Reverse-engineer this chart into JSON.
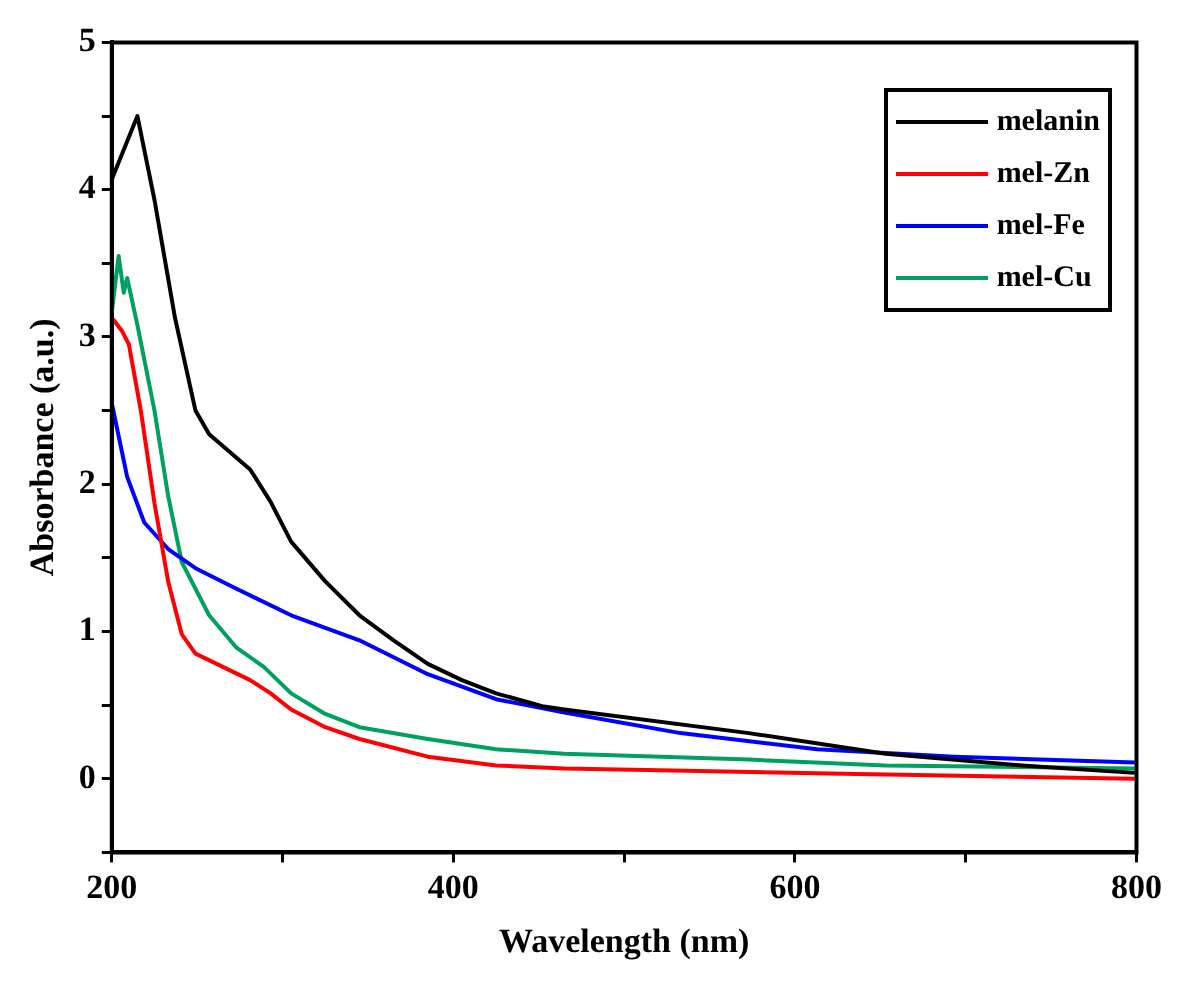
{
  "chart_data": {
    "type": "line",
    "xlabel": "Wavelength (nm)",
    "ylabel": "Absorbance (a.u.)",
    "xlim": [
      200,
      800
    ],
    "xticks": [
      200,
      {
        "value": 300,
        "label": null
      },
      400,
      {
        "value": 500,
        "label": null
      },
      600,
      {
        "value": 700,
        "label": null
      },
      800
    ],
    "ylim": [
      -0.5,
      5
    ],
    "yticks": [
      {
        "value": -0.5,
        "label": null
      },
      0,
      {
        "value": 0.5,
        "label": null
      },
      1,
      {
        "value": 1.5,
        "label": null
      },
      2,
      {
        "value": 2.5,
        "label": null
      },
      3,
      {
        "value": 3.5,
        "label": null
      },
      4,
      {
        "value": 4.5,
        "label": null
      },
      5
    ],
    "legend": "top right",
    "marker": "none",
    "line_style": "solid",
    "series": [
      {
        "name": "melanin",
        "color": "#000000",
        "x": [
          200,
          215,
          225,
          237,
          249,
          257,
          281,
          293,
          305,
          325,
          345,
          365,
          385,
          405,
          425,
          453,
          465,
          573,
          653,
          733,
          799
        ],
        "values": [
          4.07,
          4.5,
          3.93,
          3.13,
          2.5,
          2.34,
          2.1,
          1.88,
          1.61,
          1.34,
          1.11,
          0.94,
          0.78,
          0.67,
          0.58,
          0.49,
          0.47,
          0.31,
          0.17,
          0.09,
          0.04
        ]
      },
      {
        "name": "mel-Zn",
        "color": "#ff0000",
        "x": [
          200,
          206,
          210,
          217,
          225,
          233,
          241,
          249,
          265,
          281,
          293,
          305,
          325,
          345,
          385,
          425,
          465,
          513,
          645,
          799
        ],
        "values": [
          3.13,
          3.04,
          2.95,
          2.5,
          1.87,
          1.34,
          0.98,
          0.85,
          0.76,
          0.67,
          0.58,
          0.47,
          0.35,
          0.27,
          0.15,
          0.09,
          0.07,
          0.06,
          0.03,
          0.0
        ]
      },
      {
        "name": "mel-Fe",
        "color": "#0000ff",
        "x": [
          200,
          209,
          219,
          233,
          249,
          273,
          305,
          345,
          385,
          425,
          465,
          533,
          613,
          693,
          799
        ],
        "values": [
          2.55,
          2.05,
          1.74,
          1.56,
          1.43,
          1.29,
          1.11,
          0.94,
          0.71,
          0.54,
          0.45,
          0.31,
          0.2,
          0.15,
          0.11
        ]
      },
      {
        "name": "mel-Cu",
        "color": "#00a060",
        "x": [
          200,
          204,
          207,
          209,
          215,
          225,
          233,
          241,
          257,
          273,
          289,
          305,
          325,
          345,
          385,
          425,
          465,
          573,
          653,
          799
        ],
        "values": [
          3.17,
          3.55,
          3.3,
          3.4,
          3.08,
          2.5,
          1.92,
          1.47,
          1.11,
          0.89,
          0.76,
          0.58,
          0.44,
          0.35,
          0.27,
          0.2,
          0.17,
          0.13,
          0.09,
          0.07
        ]
      }
    ]
  }
}
